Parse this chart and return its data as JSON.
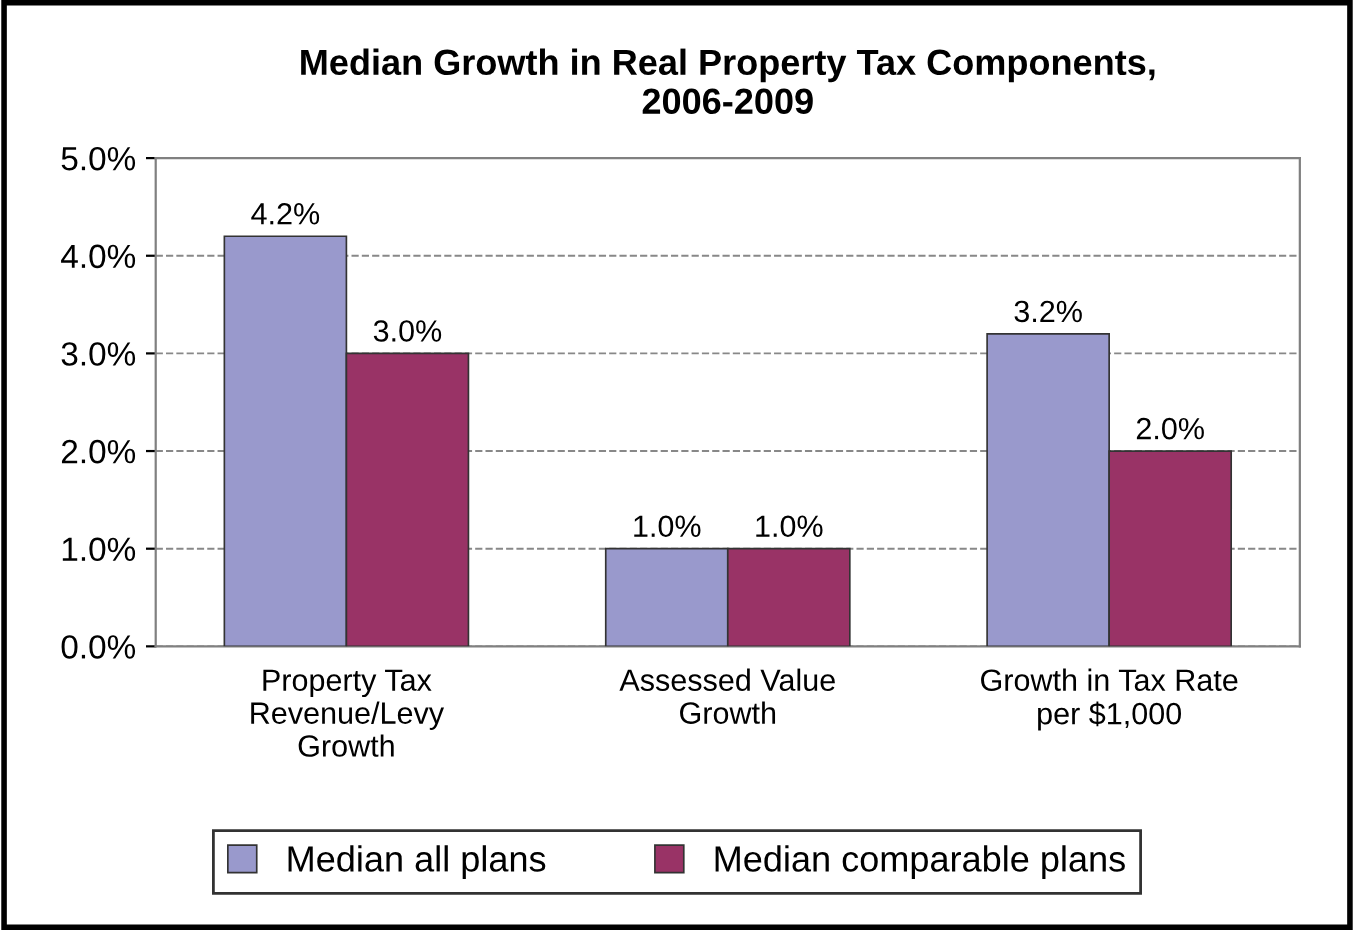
{
  "chart_data": {
    "type": "bar",
    "title": "Median Growth in Real Property Tax Components,\n2006-2009",
    "categories": [
      "Property Tax\nRevenue/Levy\nGrowth",
      "Assessed Value\nGrowth",
      "Growth in Tax Rate\nper $1,000"
    ],
    "series": [
      {
        "name": "Median all plans",
        "color": "#9999cc",
        "values": [
          4.2,
          1.0,
          3.2
        ],
        "value_labels": [
          "4.2%",
          "1.0%",
          "3.2%"
        ]
      },
      {
        "name": "Median comparable plans",
        "color": "#993366",
        "values": [
          3.0,
          1.0,
          2.0
        ],
        "value_labels": [
          "3.0%",
          "1.0%",
          "2.0%"
        ]
      }
    ],
    "ylim": [
      0,
      5
    ],
    "yticks": [
      {
        "value": 0,
        "label": "0.0%"
      },
      {
        "value": 1,
        "label": "1.0%"
      },
      {
        "value": 2,
        "label": "2.0%"
      },
      {
        "value": 3,
        "label": "3.0%"
      },
      {
        "value": 4,
        "label": "4.0%"
      },
      {
        "value": 5,
        "label": "5.0%"
      }
    ],
    "grid": "y",
    "legend": "bottom"
  }
}
